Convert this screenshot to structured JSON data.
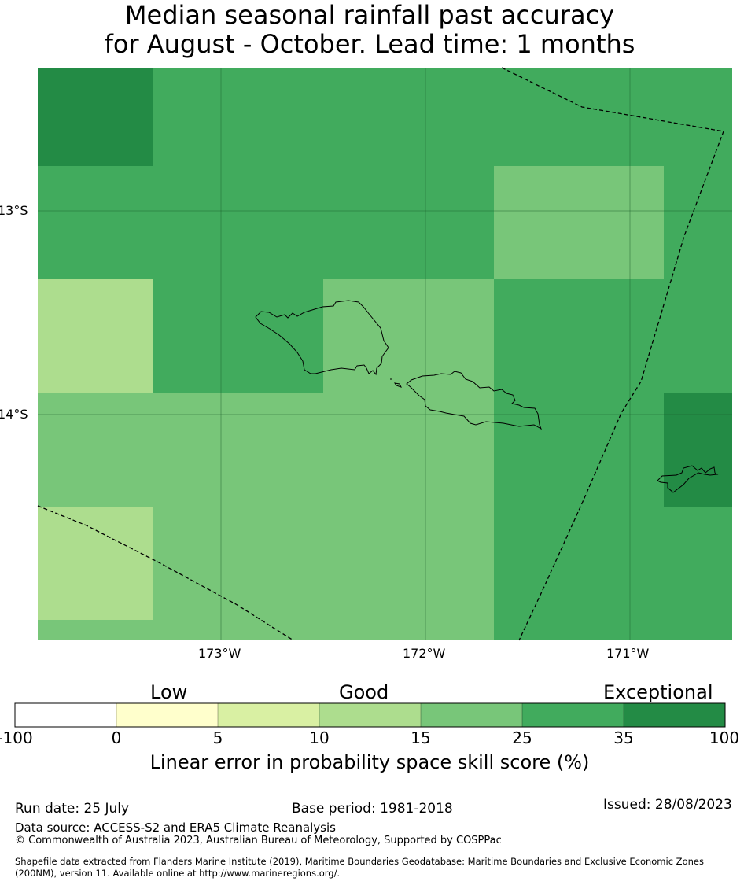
{
  "title": {
    "line1": "Median seasonal rainfall past accuracy",
    "line2": "for August - October. Lead time: 1 months"
  },
  "map": {
    "lat_labels": [
      "13°S",
      "14°S"
    ],
    "lon_labels": [
      "173°W",
      "172°W",
      "171°W"
    ],
    "grid_colors": {
      "35-100": "#238b45",
      "25-35": "#41ab5d",
      "15-25": "#78c679",
      "10-15": "#addd8e"
    }
  },
  "legend": {
    "categories": [
      "Low",
      "Good",
      "Exceptional"
    ],
    "ticks": [
      "-100",
      "0",
      "5",
      "10",
      "15",
      "25",
      "35",
      "100"
    ],
    "colors": [
      "#ffffff",
      "#ffffcc",
      "#d9f0a3",
      "#addd8e",
      "#78c679",
      "#41ab5d",
      "#238b45"
    ],
    "title": "Linear error in probability space skill score (%)"
  },
  "footer": {
    "run_date": "Run date: 25 July",
    "base_period": "Base period: 1981-2018",
    "issued": "Issued: 28/08/2023",
    "data_source": "Data source: ACCESS-S2 and ERA5 Climate Reanalysis",
    "copyright": "© Commonwealth of Australia 2023, Australian Bureau of Meteorology, Supported by COSPPac",
    "shapefile_line1": "Shapefile data extracted from Flanders Marine Institute (2019), Maritime Boundaries Geodatabase: Maritime Boundaries and Exclusive Economic Zones",
    "shapefile_line2": "(200NM), version 11. Available online at http://www.marineregions.org/."
  }
}
